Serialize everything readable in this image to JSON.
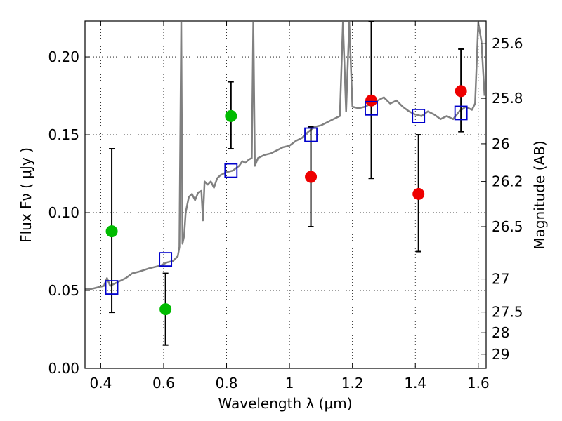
{
  "chart_data": {
    "type": "scatter",
    "xlabel": "Wavelength  λ (μm)",
    "ylabel": "Flux  Fν  ( μJy )",
    "ylabel_right": "Magnitude (AB)",
    "xlim": [
      0.35,
      1.625
    ],
    "ylim": [
      0.0,
      0.223
    ],
    "grid": true,
    "x_ticks": [
      0.4,
      0.6,
      0.8,
      1.0,
      1.2,
      1.4,
      1.6
    ],
    "x_tick_labels": [
      "0.4",
      "0.6",
      "0.8",
      "1",
      "1.2",
      "1.4",
      "1.6"
    ],
    "y_ticks": [
      0.0,
      0.05,
      0.1,
      0.15,
      0.2
    ],
    "y_tick_labels": [
      "0.00",
      "0.05",
      "0.10",
      "0.15",
      "0.20"
    ],
    "right_ticks": [
      {
        "label": "25.6",
        "flux": 0.2085
      },
      {
        "label": "25.8",
        "flux": 0.1734
      },
      {
        "label": "26",
        "flux": 0.1442
      },
      {
        "label": "26.2",
        "flux": 0.12
      },
      {
        "label": "26.5",
        "flux": 0.091
      },
      {
        "label": "27",
        "flux": 0.0574
      },
      {
        "label": "27.5",
        "flux": 0.0362
      },
      {
        "label": "28",
        "flux": 0.0229
      },
      {
        "label": "29",
        "flux": 0.0091
      }
    ],
    "colors": {
      "template": "#808080",
      "green": "#00bb00",
      "red": "#ee0000",
      "blue": "#0000cc",
      "errorbar": "#000000"
    },
    "template_spectrum": [
      [
        0.35,
        0.051
      ],
      [
        0.37,
        0.051
      ],
      [
        0.39,
        0.052
      ],
      [
        0.41,
        0.053
      ],
      [
        0.42,
        0.058
      ],
      [
        0.43,
        0.053
      ],
      [
        0.45,
        0.055
      ],
      [
        0.48,
        0.058
      ],
      [
        0.5,
        0.061
      ],
      [
        0.52,
        0.062
      ],
      [
        0.55,
        0.064
      ],
      [
        0.57,
        0.065
      ],
      [
        0.59,
        0.066
      ],
      [
        0.61,
        0.068
      ],
      [
        0.63,
        0.069
      ],
      [
        0.645,
        0.072
      ],
      [
        0.65,
        0.078
      ],
      [
        0.656,
        0.222
      ],
      [
        0.66,
        0.08
      ],
      [
        0.665,
        0.085
      ],
      [
        0.67,
        0.1
      ],
      [
        0.68,
        0.11
      ],
      [
        0.69,
        0.112
      ],
      [
        0.7,
        0.108
      ],
      [
        0.71,
        0.113
      ],
      [
        0.72,
        0.114
      ],
      [
        0.725,
        0.095
      ],
      [
        0.73,
        0.12
      ],
      [
        0.74,
        0.118
      ],
      [
        0.75,
        0.12
      ],
      [
        0.76,
        0.116
      ],
      [
        0.77,
        0.122
      ],
      [
        0.78,
        0.124
      ],
      [
        0.79,
        0.125
      ],
      [
        0.8,
        0.126
      ],
      [
        0.82,
        0.127
      ],
      [
        0.84,
        0.13
      ],
      [
        0.85,
        0.133
      ],
      [
        0.86,
        0.132
      ],
      [
        0.87,
        0.134
      ],
      [
        0.88,
        0.135
      ],
      [
        0.885,
        0.222
      ],
      [
        0.89,
        0.13
      ],
      [
        0.9,
        0.135
      ],
      [
        0.92,
        0.137
      ],
      [
        0.94,
        0.138
      ],
      [
        0.96,
        0.14
      ],
      [
        0.98,
        0.142
      ],
      [
        1.0,
        0.143
      ],
      [
        1.02,
        0.146
      ],
      [
        1.04,
        0.148
      ],
      [
        1.06,
        0.152
      ],
      [
        1.08,
        0.155
      ],
      [
        1.1,
        0.156
      ],
      [
        1.12,
        0.158
      ],
      [
        1.14,
        0.16
      ],
      [
        1.16,
        0.162
      ],
      [
        1.17,
        0.222
      ],
      [
        1.18,
        0.165
      ],
      [
        1.19,
        0.222
      ],
      [
        1.2,
        0.168
      ],
      [
        1.22,
        0.167
      ],
      [
        1.24,
        0.168
      ],
      [
        1.26,
        0.17
      ],
      [
        1.28,
        0.172
      ],
      [
        1.3,
        0.174
      ],
      [
        1.32,
        0.17
      ],
      [
        1.34,
        0.172
      ],
      [
        1.36,
        0.168
      ],
      [
        1.38,
        0.165
      ],
      [
        1.4,
        0.163
      ],
      [
        1.42,
        0.162
      ],
      [
        1.44,
        0.165
      ],
      [
        1.46,
        0.163
      ],
      [
        1.48,
        0.16
      ],
      [
        1.5,
        0.162
      ],
      [
        1.52,
        0.16
      ],
      [
        1.54,
        0.165
      ],
      [
        1.56,
        0.168
      ],
      [
        1.58,
        0.166
      ],
      [
        1.59,
        0.17
      ],
      [
        1.6,
        0.222
      ],
      [
        1.61,
        0.21
      ],
      [
        1.62,
        0.175
      ]
    ],
    "series": [
      {
        "marker": "circle",
        "color": "green",
        "points": [
          {
            "x": 0.435,
            "y": 0.088,
            "ylow": 0.036,
            "yhigh": 0.141
          },
          {
            "x": 0.606,
            "y": 0.038,
            "ylow": 0.015,
            "yhigh": 0.061
          },
          {
            "x": 0.814,
            "y": 0.162,
            "ylow": 0.141,
            "yhigh": 0.184
          }
        ]
      },
      {
        "marker": "circle",
        "color": "red",
        "points": [
          {
            "x": 1.068,
            "y": 0.123,
            "ylow": 0.091,
            "yhigh": 0.155
          },
          {
            "x": 1.26,
            "y": 0.172,
            "ylow": 0.122,
            "yhigh": 0.223
          },
          {
            "x": 1.41,
            "y": 0.112,
            "ylow": 0.075,
            "yhigh": 0.15
          },
          {
            "x": 1.545,
            "y": 0.178,
            "ylow": 0.152,
            "yhigh": 0.205
          }
        ]
      },
      {
        "marker": "square",
        "color": "blue",
        "points": [
          {
            "x": 0.435,
            "y": 0.052
          },
          {
            "x": 0.606,
            "y": 0.07
          },
          {
            "x": 0.814,
            "y": 0.127
          },
          {
            "x": 1.068,
            "y": 0.15
          },
          {
            "x": 1.26,
            "y": 0.167
          },
          {
            "x": 1.41,
            "y": 0.162
          },
          {
            "x": 1.545,
            "y": 0.164
          }
        ]
      }
    ]
  }
}
